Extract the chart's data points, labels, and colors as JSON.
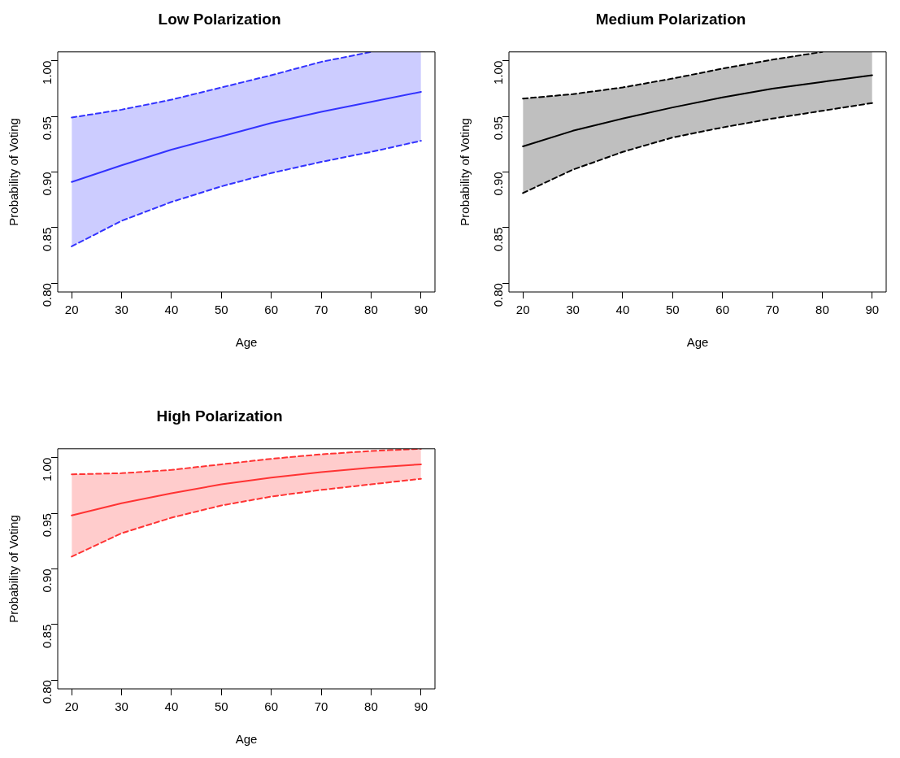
{
  "chart_data": [
    {
      "type": "line",
      "title": "Low Polarization",
      "xlabel": "Age",
      "ylabel": "Probability of Voting",
      "x": [
        20,
        30,
        40,
        50,
        60,
        70,
        80,
        90
      ],
      "xlim": [
        17.2,
        92.8
      ],
      "xticks": [
        20,
        30,
        40,
        50,
        60,
        70,
        80,
        90
      ],
      "ylim": [
        0.792,
        1.008
      ],
      "yticks": [
        {
          "value": 0.8,
          "label": "0.80"
        },
        {
          "value": 0.85,
          "label": "0.85"
        },
        {
          "value": 0.9,
          "label": "0.90"
        },
        {
          "value": 0.95,
          "label": "0.95"
        },
        {
          "value": 1.0,
          "label": "1.00"
        }
      ],
      "grid": false,
      "legend": false,
      "marker": "none",
      "series": [
        {
          "color": "#3333ff",
          "line_style": "solid",
          "values": [
            0.891,
            0.906,
            0.92,
            0.932,
            0.944,
            0.954,
            0.963,
            0.972
          ],
          "lower": [
            0.833,
            0.856,
            0.873,
            0.887,
            0.899,
            0.909,
            0.918,
            0.928
          ],
          "upper": [
            0.949,
            0.956,
            0.965,
            0.976,
            0.987,
            0.999,
            1.008,
            1.008
          ]
        },
        {
          "color": "#3333ff",
          "line_style": "dashed",
          "values": [
            0.833,
            0.856,
            0.873,
            0.887,
            0.899,
            0.909,
            0.918,
            0.928
          ]
        },
        {
          "color": "#3333ff",
          "line_style": "dashed",
          "values": [
            0.949,
            0.956,
            0.965,
            0.976,
            0.987,
            0.999,
            1.008,
            null
          ]
        }
      ]
    },
    {
      "type": "line",
      "title": "Medium Polarization",
      "xlabel": "Age",
      "ylabel": "Probability of Voting",
      "x": [
        20,
        30,
        40,
        50,
        60,
        70,
        80,
        90
      ],
      "xlim": [
        17.2,
        92.8
      ],
      "xticks": [
        20,
        30,
        40,
        50,
        60,
        70,
        80,
        90
      ],
      "ylim": [
        0.792,
        1.008
      ],
      "yticks": [
        {
          "value": 0.8,
          "label": "0.80"
        },
        {
          "value": 0.85,
          "label": "0.85"
        },
        {
          "value": 0.9,
          "label": "0.90"
        },
        {
          "value": 0.95,
          "label": "0.95"
        },
        {
          "value": 1.0,
          "label": "1.00"
        }
      ],
      "grid": false,
      "legend": false,
      "marker": "none",
      "series": [
        {
          "color": "#000000",
          "line_style": "solid",
          "values": [
            0.923,
            0.937,
            0.948,
            0.958,
            0.967,
            0.975,
            0.981,
            0.987
          ],
          "lower": [
            0.881,
            0.902,
            0.918,
            0.931,
            0.94,
            0.948,
            0.955,
            0.962
          ],
          "upper": [
            0.966,
            0.97,
            0.976,
            0.984,
            0.993,
            1.001,
            1.008,
            1.008
          ]
        },
        {
          "color": "#000000",
          "line_style": "dashed",
          "values": [
            0.881,
            0.902,
            0.918,
            0.931,
            0.94,
            0.948,
            0.955,
            0.962
          ]
        },
        {
          "color": "#000000",
          "line_style": "dashed",
          "values": [
            0.966,
            0.97,
            0.976,
            0.984,
            0.993,
            1.001,
            1.008,
            null
          ]
        }
      ]
    },
    {
      "type": "line",
      "title": "High Polarization",
      "xlabel": "Age",
      "ylabel": "Probability of Voting",
      "x": [
        20,
        30,
        40,
        50,
        60,
        70,
        80,
        90
      ],
      "xlim": [
        17.2,
        92.8
      ],
      "xticks": [
        20,
        30,
        40,
        50,
        60,
        70,
        80,
        90
      ],
      "ylim": [
        0.792,
        1.008
      ],
      "yticks": [
        {
          "value": 0.8,
          "label": "0.80"
        },
        {
          "value": 0.85,
          "label": "0.85"
        },
        {
          "value": 0.9,
          "label": "0.90"
        },
        {
          "value": 0.95,
          "label": "0.95"
        },
        {
          "value": 1.0,
          "label": "1.00"
        }
      ],
      "grid": false,
      "legend": false,
      "marker": "none",
      "series": [
        {
          "color": "#ff3333",
          "line_style": "solid",
          "values": [
            0.948,
            0.959,
            0.968,
            0.976,
            0.982,
            0.987,
            0.991,
            0.994
          ],
          "lower": [
            0.911,
            0.932,
            0.946,
            0.957,
            0.965,
            0.971,
            0.976,
            0.981
          ],
          "upper": [
            0.985,
            0.986,
            0.989,
            0.994,
            0.999,
            1.003,
            1.006,
            1.008
          ]
        },
        {
          "color": "#ff3333",
          "line_style": "dashed",
          "values": [
            0.911,
            0.932,
            0.946,
            0.957,
            0.965,
            0.971,
            0.976,
            0.981
          ]
        },
        {
          "color": "#ff3333",
          "line_style": "dashed",
          "values": [
            0.985,
            0.986,
            0.989,
            0.994,
            0.999,
            1.003,
            1.006,
            1.008
          ]
        }
      ]
    }
  ]
}
